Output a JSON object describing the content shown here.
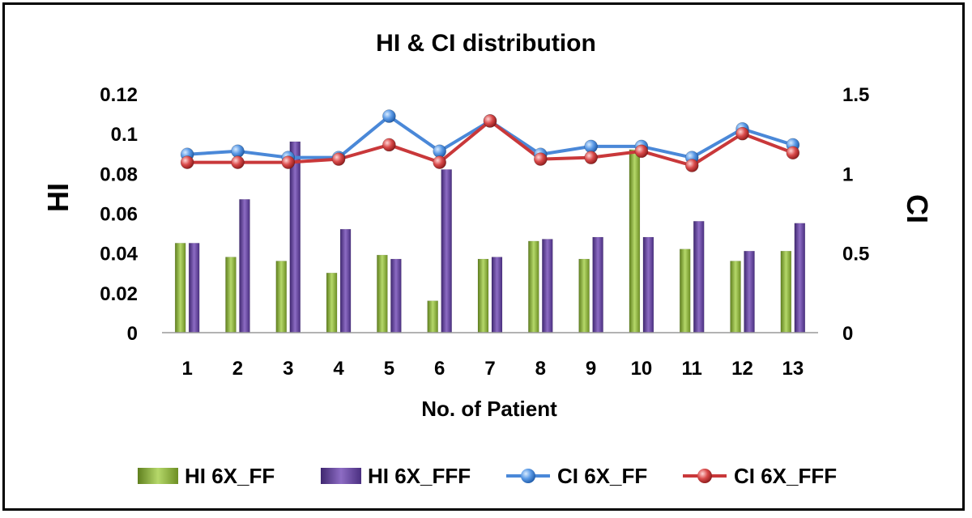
{
  "chart_data": {
    "type": "bar+line",
    "title": "HI & CI distribution",
    "xlabel": "No. of Patient",
    "ylabel_left": "HI",
    "ylabel_right": "CI",
    "categories": [
      "1",
      "2",
      "3",
      "4",
      "5",
      "6",
      "7",
      "8",
      "9",
      "10",
      "11",
      "12",
      "13"
    ],
    "y_left": {
      "lim": [
        0,
        0.12
      ],
      "ticks": [
        "0",
        "0.02",
        "0.04",
        "0.06",
        "0.08",
        "0.1",
        "0.12"
      ]
    },
    "y_right": {
      "lim": [
        0,
        1.5
      ],
      "ticks": [
        "0",
        "0.5",
        "1",
        "1.5"
      ]
    },
    "bar_series": [
      {
        "name": "HI 6X_FF",
        "color": "#8db33a",
        "values": [
          0.045,
          0.038,
          0.036,
          0.03,
          0.039,
          0.016,
          0.037,
          0.046,
          0.037,
          0.092,
          0.042,
          0.036,
          0.041
        ]
      },
      {
        "name": "HI 6X_FFF",
        "color": "#6a4a9c",
        "values": [
          0.045,
          0.067,
          0.096,
          0.052,
          0.037,
          0.082,
          0.038,
          0.047,
          0.048,
          0.048,
          0.056,
          0.041,
          0.055
        ]
      }
    ],
    "line_series": [
      {
        "name": "CI 6X_FF",
        "color": "#4a88d8",
        "values": [
          1.12,
          1.14,
          1.1,
          1.1,
          1.36,
          1.14,
          1.33,
          1.12,
          1.17,
          1.17,
          1.1,
          1.28,
          1.18
        ]
      },
      {
        "name": "CI 6X_FFF",
        "color": "#c9383a",
        "values": [
          1.07,
          1.07,
          1.07,
          1.09,
          1.18,
          1.07,
          1.33,
          1.09,
          1.1,
          1.14,
          1.05,
          1.25,
          1.13
        ]
      }
    ],
    "grid": false,
    "legend": "bottom"
  }
}
